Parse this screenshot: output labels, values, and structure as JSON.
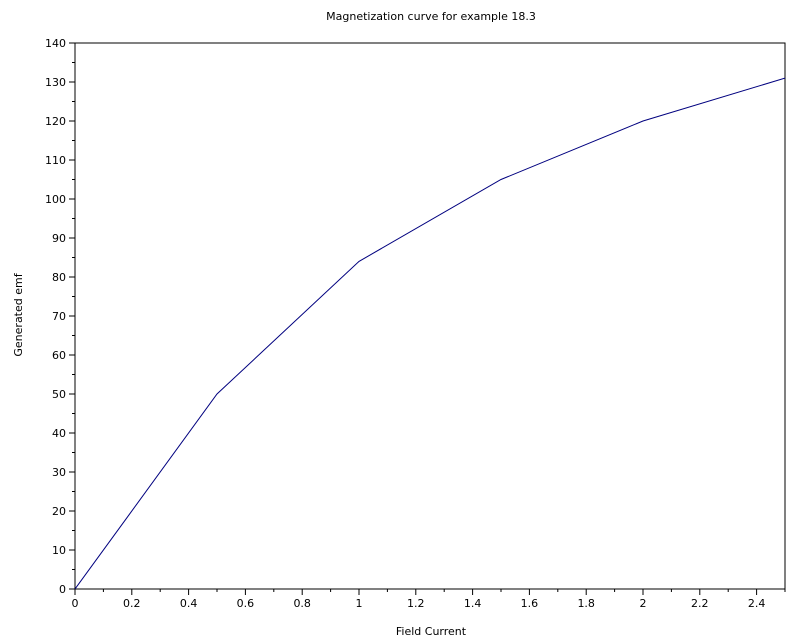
{
  "chart_data": {
    "type": "line",
    "title": "Magnetization curve for example 18.3",
    "xlabel": "Field Current",
    "ylabel": "Generated emf",
    "xlim": [
      0,
      2.5
    ],
    "ylim": [
      0,
      140
    ],
    "x_ticks": [
      0,
      0.2,
      0.4,
      0.6,
      0.8,
      1,
      1.2,
      1.4,
      1.6,
      1.8,
      2,
      2.2,
      2.4
    ],
    "x_tick_labels": [
      "0",
      "0.2",
      "0.4",
      "0.6",
      "0.8",
      "1",
      "1.2",
      "1.4",
      "1.6",
      "1.8",
      "2",
      "2.2",
      "2.4"
    ],
    "y_ticks": [
      0,
      10,
      20,
      30,
      40,
      50,
      60,
      70,
      80,
      90,
      100,
      110,
      120,
      130,
      140
    ],
    "y_tick_labels": [
      "0",
      "10",
      "20",
      "30",
      "40",
      "50",
      "60",
      "70",
      "80",
      "90",
      "100",
      "110",
      "120",
      "130",
      "140"
    ],
    "grid": false,
    "series": [
      {
        "color": "#00007f",
        "x": [
          0,
          0.5,
          1.0,
          1.5,
          2.0,
          2.5
        ],
        "y": [
          0,
          50,
          84,
          105,
          120,
          131
        ]
      }
    ]
  }
}
